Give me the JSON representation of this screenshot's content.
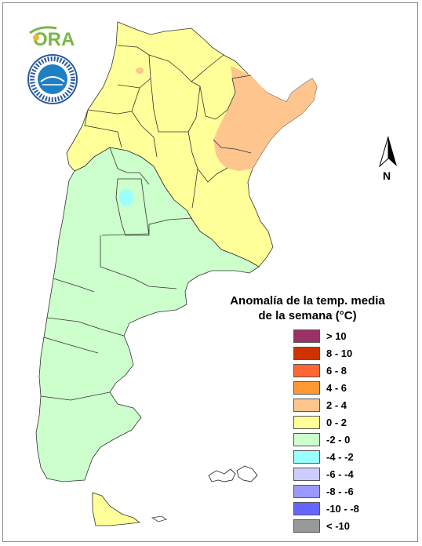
{
  "map": {
    "legend_title_line1": "Anomalía de la temp. media",
    "legend_title_line2": "de la semana (°C)",
    "north_label": "N",
    "logo_text": "ORA",
    "legend": [
      {
        "label": "> 10",
        "color": "#993366"
      },
      {
        "label": "8 - 10",
        "color": "#cc3300"
      },
      {
        "label": "6 - 8",
        "color": "#ff6633"
      },
      {
        "label": "4 - 6",
        "color": "#ff9933"
      },
      {
        "label": "2 - 4",
        "color": "#ffc58f"
      },
      {
        "label": "0 - 2",
        "color": "#ffff99"
      },
      {
        "label": "-2 - 0",
        "color": "#ccffcc"
      },
      {
        "label": "-4 - -2",
        "color": "#99ffff"
      },
      {
        "label": "-6 - -4",
        "color": "#ccccff"
      },
      {
        "label": "-8 - -6",
        "color": "#9999ff"
      },
      {
        "label": "-10 - -8",
        "color": "#6666ff"
      },
      {
        "label": "< -10",
        "color": "#999999"
      }
    ],
    "colors": {
      "land_warm": "#ffff99",
      "land_cool": "#ccffcc",
      "land_hot": "#ffc58f",
      "cold_spot": "#99ffff"
    }
  }
}
